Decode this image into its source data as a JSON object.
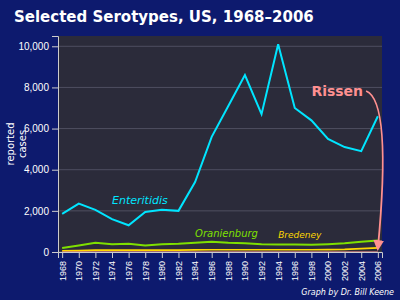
{
  "chart_data": {
    "type": "line",
    "title": "Selected Serotypes, US, 1968–2006",
    "y_label": "reported\ncases",
    "annotations": [
      "Graph by Dr. Bill Keene"
    ],
    "x": [
      1968,
      1970,
      1972,
      1974,
      1976,
      1978,
      1980,
      1982,
      1984,
      1986,
      1988,
      1990,
      1992,
      1994,
      1996,
      1998,
      2000,
      2002,
      2004,
      2006
    ],
    "series": [
      {
        "name": "Enteritidis",
        "color": "#00E5FF",
        "values": [
          1850,
          2350,
          2050,
          1600,
          1300,
          1950,
          2050,
          2000,
          3400,
          5600,
          7100,
          8600,
          6700,
          10100,
          7000,
          6400,
          5500,
          5100,
          4900,
          6600
        ]
      },
      {
        "name": "Oranienburg",
        "color": "#7FE000",
        "values": [
          200,
          320,
          450,
          380,
          400,
          320,
          380,
          400,
          450,
          500,
          450,
          430,
          380,
          370,
          360,
          350,
          380,
          420,
          500,
          560
        ]
      },
      {
        "name": "Bredeney",
        "color": "#FFD700",
        "values": [
          60,
          70,
          90,
          90,
          90,
          90,
          90,
          90,
          100,
          110,
          110,
          110,
          110,
          110,
          110,
          110,
          120,
          130,
          160,
          200
        ]
      },
      {
        "name": "Rissen",
        "color": "#FF9090",
        "values": [
          10,
          10,
          10,
          10,
          10,
          10,
          10,
          10,
          10,
          10,
          10,
          10,
          10,
          10,
          10,
          10,
          10,
          10,
          10,
          10
        ]
      }
    ],
    "xlim": [
      1967.5,
      2006.5
    ],
    "xticks": [
      1968,
      1970,
      1972,
      1974,
      1976,
      1978,
      1980,
      1982,
      1984,
      1986,
      1988,
      1990,
      1992,
      1994,
      1996,
      1998,
      2000,
      2002,
      2004,
      2006
    ],
    "ylim": [
      0,
      10500
    ],
    "yticks": [
      0,
      {
        "value": 2000,
        "label": "2,000"
      },
      {
        "value": 4000,
        "label": "4,000"
      },
      {
        "value": 6000,
        "label": "6,000"
      },
      {
        "value": 8000,
        "label": "8,000"
      },
      {
        "value": 10000,
        "label": "10,000"
      }
    ],
    "grid": true
  }
}
